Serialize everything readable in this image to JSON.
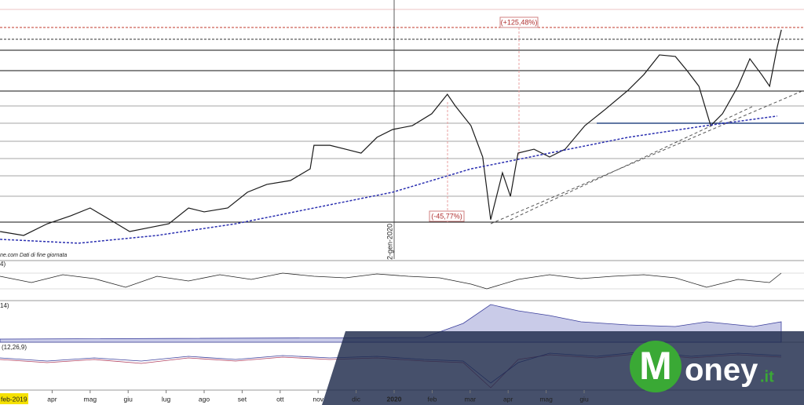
{
  "chart_data": {
    "type": "line",
    "xlim": [
      -0.372,
      20.785
    ],
    "ylim": [
      0,
      100
    ],
    "xticks": [
      {
        "value": 1,
        "label": "apr"
      },
      {
        "value": 2,
        "label": "mag"
      },
      {
        "value": 3,
        "label": "giu"
      },
      {
        "value": 4,
        "label": "lug"
      },
      {
        "value": 5,
        "label": "ago"
      },
      {
        "value": 6,
        "label": "set"
      },
      {
        "value": 7,
        "label": "ott"
      },
      {
        "value": 8,
        "label": "nov"
      },
      {
        "value": 9,
        "label": "dic"
      },
      {
        "value": 10,
        "label": "2020"
      },
      {
        "value": 11,
        "label": "feb"
      },
      {
        "value": 12,
        "label": "mar"
      },
      {
        "value": 13,
        "label": "apr"
      },
      {
        "value": 14,
        "label": "mag"
      },
      {
        "value": 15,
        "label": "giu"
      }
    ],
    "series": [
      {
        "color": "#1a1a1a",
        "dashed": false,
        "x": [
          -0.37,
          0.25,
          0.87,
          1.49,
          2.0,
          2.52,
          3.04,
          3.55,
          4.07,
          4.59,
          5.0,
          5.62,
          6.14,
          6.65,
          7.27,
          7.79,
          7.89,
          8.31,
          8.72,
          9.13,
          9.55,
          9.96,
          10.48,
          10.99,
          11.4,
          11.61,
          12.02,
          12.33,
          12.54,
          12.85,
          13.06,
          13.26,
          13.68,
          14.09,
          14.5,
          15.02,
          15.54,
          16.16,
          16.57,
          16.98,
          17.4,
          17.71,
          18.02,
          18.33,
          18.64,
          19.05,
          19.36,
          19.67,
          19.88,
          20.08,
          20.19
        ],
        "values": [
          10.6,
          9.1,
          13.6,
          16.7,
          19.7,
          15.2,
          10.6,
          12.1,
          13.6,
          19.7,
          18.2,
          19.7,
          25.8,
          28.8,
          30.3,
          34.8,
          43.9,
          43.9,
          42.4,
          40.9,
          47.0,
          50.0,
          51.5,
          56.1,
          63.6,
          59.1,
          51.5,
          39.4,
          15.2,
          33.3,
          24.2,
          40.9,
          42.4,
          39.4,
          42.4,
          51.5,
          57.6,
          65.2,
          71.2,
          78.8,
          78.2,
          72.7,
          66.7,
          51.5,
          56.1,
          66.7,
          77.3,
          71.2,
          66.7,
          81.8,
          88.5
        ]
      },
      {
        "color": "#2a2fb0",
        "dashed": true,
        "x": [
          -0.37,
          1.69,
          3.76,
          5.83,
          7.89,
          9.96,
          12.02,
          14.09,
          16.16,
          18.22,
          20.08
        ],
        "values": [
          7.6,
          6.1,
          9.1,
          13.6,
          19.7,
          25.8,
          34.8,
          40.9,
          47.0,
          51.5,
          55.2
        ]
      }
    ],
    "annotations": {
      "gain": "(+125,48%)",
      "drop": "(-45,77%)",
      "date_marker": "2-gen-2020"
    },
    "cursor_label": "feb-2019",
    "source": "ne.com  Dati di fine giornata",
    "indicator_labels": [
      "4)",
      "14)",
      "(12,26,9)"
    ]
  },
  "logo": {
    "initial": "M",
    "text": "oney",
    "suffix": ".it"
  }
}
